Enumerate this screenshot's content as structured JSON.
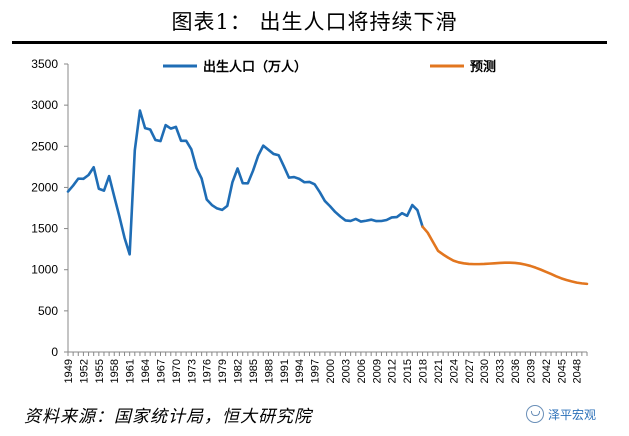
{
  "title": "图表1：  出生人口将持续下滑",
  "source": "资料来源：国家统计局，恒大研究院",
  "watermark": "泽平宏观",
  "colors": {
    "actual": "#1f6db5",
    "forecast": "#e2761f",
    "axis": "#888888",
    "text": "#000000"
  },
  "chart_data": {
    "type": "line",
    "title": "",
    "xlabel": "",
    "ylabel": "",
    "ylim": [
      0,
      3500
    ],
    "xlim": [
      1949,
      2050
    ],
    "yticks": [
      0,
      500,
      1000,
      1500,
      2000,
      2500,
      3000,
      3500
    ],
    "xticks": [
      "1949",
      "1952",
      "1955",
      "1958",
      "1961",
      "1964",
      "1967",
      "1970",
      "1973",
      "1976",
      "1979",
      "1982",
      "1985",
      "1988",
      "1991",
      "1994",
      "1997",
      "2000",
      "2003",
      "2006",
      "2009",
      "2012",
      "2015",
      "2018",
      "2021",
      "2024",
      "2027",
      "2030",
      "2033",
      "2036",
      "2039",
      "2042",
      "2045",
      "2048"
    ],
    "grid": false,
    "legend": "top",
    "series": [
      {
        "name": "出生人口（万人）",
        "color": "#1f6db5",
        "x": [
          1949,
          1950,
          1951,
          1952,
          1953,
          1954,
          1955,
          1956,
          1957,
          1958,
          1959,
          1960,
          1961,
          1962,
          1963,
          1964,
          1965,
          1966,
          1967,
          1968,
          1969,
          1970,
          1971,
          1972,
          1973,
          1974,
          1975,
          1976,
          1977,
          1978,
          1979,
          1980,
          1981,
          1982,
          1983,
          1984,
          1985,
          1986,
          1987,
          1988,
          1989,
          1990,
          1991,
          1992,
          1993,
          1994,
          1995,
          1996,
          1997,
          1998,
          1999,
          2000,
          2001,
          2002,
          2003,
          2004,
          2005,
          2006,
          2007,
          2008,
          2009,
          2010,
          2011,
          2012,
          2013,
          2014,
          2015,
          2016,
          2017,
          2018
        ],
        "y": [
          1950,
          2023,
          2107,
          2105,
          2151,
          2245,
          1984,
          1961,
          2138,
          1889,
          1647,
          1389,
          1187,
          2451,
          2934,
          2721,
          2704,
          2577,
          2563,
          2757,
          2715,
          2736,
          2567,
          2566,
          2463,
          2235,
          2109,
          1853,
          1786,
          1745,
          1727,
          1776,
          2064,
          2230,
          2052,
          2050,
          2202,
          2384,
          2508,
          2457,
          2407,
          2391,
          2258,
          2119,
          2126,
          2104,
          2063,
          2067,
          2038,
          1942,
          1834,
          1771,
          1702,
          1647,
          1599,
          1593,
          1617,
          1585,
          1595,
          1608,
          1591,
          1592,
          1604,
          1635,
          1640,
          1687,
          1655,
          1786,
          1723,
          1523
        ]
      },
      {
        "name": "预测",
        "color": "#e2761f",
        "x": [
          2018,
          2019,
          2020,
          2021,
          2022,
          2023,
          2024,
          2025,
          2026,
          2027,
          2028,
          2029,
          2030,
          2031,
          2032,
          2033,
          2034,
          2035,
          2036,
          2037,
          2038,
          2039,
          2040,
          2041,
          2042,
          2043,
          2044,
          2045,
          2046,
          2047,
          2048,
          2049,
          2050
        ],
        "y": [
          1523,
          1450,
          1340,
          1230,
          1185,
          1145,
          1110,
          1090,
          1078,
          1070,
          1068,
          1068,
          1070,
          1074,
          1078,
          1082,
          1085,
          1085,
          1082,
          1075,
          1062,
          1046,
          1025,
          1001,
          975,
          948,
          920,
          895,
          875,
          858,
          843,
          834,
          828
        ]
      }
    ]
  }
}
